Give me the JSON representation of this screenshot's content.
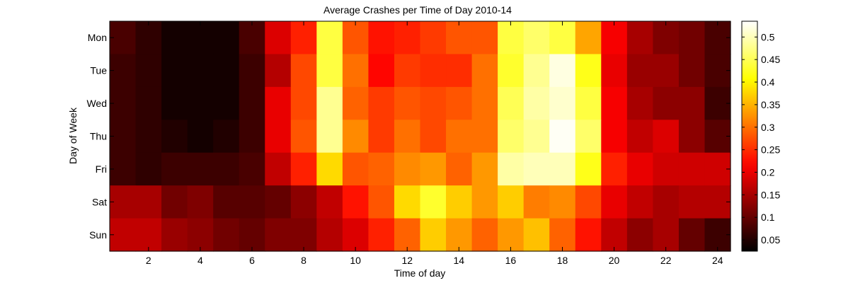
{
  "chart_data": {
    "type": "heatmap",
    "title": "Average Crashes per Time of Day 2010-14",
    "xlabel": "Time of day",
    "ylabel": "Day of Week",
    "rows": [
      "Mon",
      "Tue",
      "Wed",
      "Thu",
      "Fri",
      "Sat",
      "Sun"
    ],
    "x": [
      1,
      2,
      3,
      4,
      5,
      6,
      7,
      8,
      9,
      10,
      11,
      12,
      13,
      14,
      15,
      16,
      17,
      18,
      19,
      20,
      21,
      22,
      23,
      24
    ],
    "x_ticks": [
      2,
      4,
      6,
      8,
      10,
      12,
      14,
      16,
      18,
      20,
      22,
      24
    ],
    "values": [
      [
        0.08,
        0.06,
        0.04,
        0.04,
        0.04,
        0.08,
        0.19,
        0.24,
        0.44,
        0.28,
        0.23,
        0.24,
        0.26,
        0.28,
        0.28,
        0.44,
        0.46,
        0.44,
        0.34,
        0.21,
        0.15,
        0.12,
        0.11,
        0.08
      ],
      [
        0.07,
        0.06,
        0.04,
        0.04,
        0.04,
        0.07,
        0.16,
        0.27,
        0.44,
        0.3,
        0.22,
        0.26,
        0.25,
        0.25,
        0.3,
        0.43,
        0.48,
        0.52,
        0.42,
        0.2,
        0.14,
        0.14,
        0.11,
        0.08
      ],
      [
        0.07,
        0.06,
        0.04,
        0.04,
        0.04,
        0.07,
        0.2,
        0.27,
        0.48,
        0.29,
        0.26,
        0.28,
        0.27,
        0.28,
        0.3,
        0.45,
        0.49,
        0.51,
        0.44,
        0.21,
        0.15,
        0.13,
        0.13,
        0.07
      ],
      [
        0.07,
        0.06,
        0.05,
        0.04,
        0.05,
        0.07,
        0.2,
        0.28,
        0.48,
        0.32,
        0.26,
        0.3,
        0.27,
        0.3,
        0.3,
        0.46,
        0.48,
        0.53,
        0.46,
        0.21,
        0.17,
        0.19,
        0.13,
        0.09
      ],
      [
        0.07,
        0.06,
        0.07,
        0.07,
        0.07,
        0.08,
        0.17,
        0.24,
        0.38,
        0.28,
        0.29,
        0.32,
        0.33,
        0.29,
        0.33,
        0.49,
        0.5,
        0.5,
        0.42,
        0.24,
        0.2,
        0.18,
        0.18,
        0.18
      ],
      [
        0.15,
        0.15,
        0.11,
        0.12,
        0.09,
        0.09,
        0.1,
        0.13,
        0.17,
        0.23,
        0.28,
        0.38,
        0.43,
        0.37,
        0.33,
        0.37,
        0.31,
        0.32,
        0.27,
        0.2,
        0.17,
        0.15,
        0.16,
        0.16
      ],
      [
        0.17,
        0.17,
        0.14,
        0.13,
        0.11,
        0.1,
        0.12,
        0.12,
        0.16,
        0.19,
        0.24,
        0.29,
        0.37,
        0.33,
        0.29,
        0.33,
        0.36,
        0.29,
        0.23,
        0.17,
        0.13,
        0.15,
        0.1,
        0.07
      ]
    ],
    "colorbar": {
      "colormap": "hot",
      "range": [
        0.025,
        0.535
      ],
      "ticks": [
        0.05,
        0.1,
        0.15,
        0.2,
        0.25,
        0.3,
        0.35,
        0.4,
        0.45,
        0.5
      ]
    },
    "grid": false,
    "legend": "colorbar-right"
  }
}
